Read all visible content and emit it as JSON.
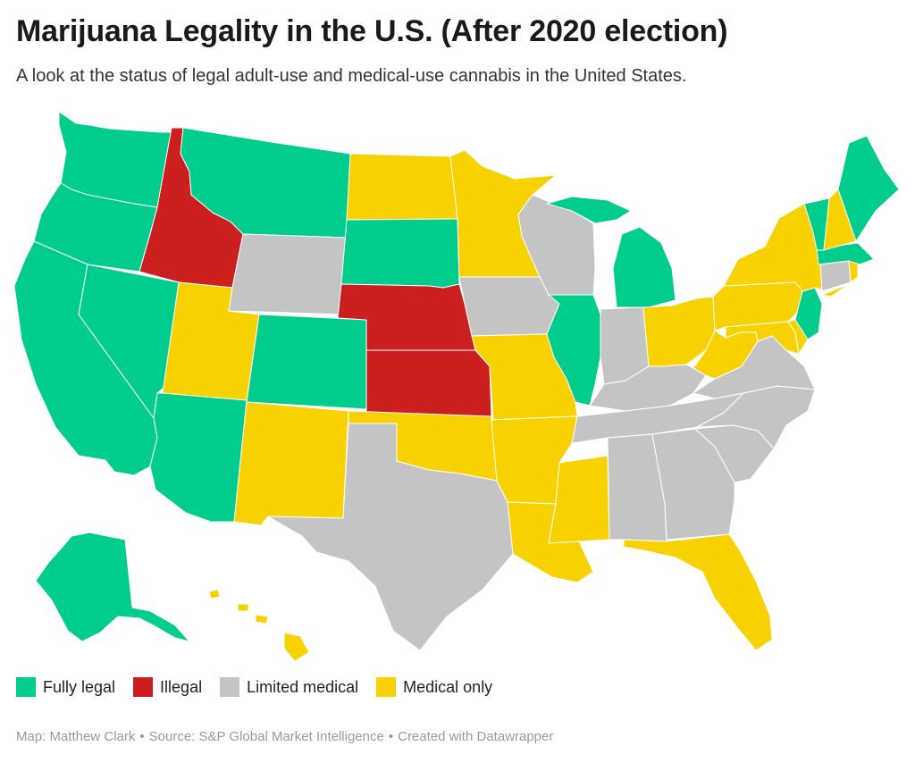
{
  "title": "Marijuana Legality in the U.S. (After 2020 election)",
  "subtitle": "A look at the status of legal adult-use and medical-use cannabis in the United States.",
  "colors": {
    "fully_legal": "#00cc8e",
    "illegal": "#cc1f1f",
    "limited_medical": "#c4c4c4",
    "medical_only": "#f7d100"
  },
  "legend": [
    {
      "key": "fully_legal",
      "label": "Fully legal"
    },
    {
      "key": "illegal",
      "label": "Illegal"
    },
    {
      "key": "limited_medical",
      "label": "Limited medical"
    },
    {
      "key": "medical_only",
      "label": "Medical only"
    }
  ],
  "state_status": {
    "WA": "fully_legal",
    "OR": "fully_legal",
    "CA": "fully_legal",
    "NV": "fully_legal",
    "AZ": "fully_legal",
    "MT": "fully_legal",
    "CO": "fully_legal",
    "SD": "fully_legal",
    "IL": "fully_legal",
    "MI": "fully_legal",
    "AK": "fully_legal",
    "ME": "fully_legal",
    "VT": "fully_legal",
    "MA": "fully_legal",
    "NJ": "fully_legal",
    "ID": "illegal",
    "NE": "illegal",
    "KS": "illegal",
    "WY": "limited_medical",
    "WI": "limited_medical",
    "IA": "limited_medical",
    "IN": "limited_medical",
    "TX": "limited_medical",
    "KY": "limited_medical",
    "TN": "limited_medical",
    "NC": "limited_medical",
    "SC": "limited_medical",
    "GA": "limited_medical",
    "AL": "limited_medical",
    "VA": "limited_medical",
    "CT": "limited_medical",
    "UT": "medical_only",
    "NM": "medical_only",
    "ND": "medical_only",
    "MN": "medical_only",
    "MO": "medical_only",
    "OK": "medical_only",
    "AR": "medical_only",
    "LA": "medical_only",
    "MS": "medical_only",
    "FL": "medical_only",
    "OH": "medical_only",
    "WV": "medical_only",
    "PA": "medical_only",
    "NY": "medical_only",
    "NH": "medical_only",
    "MD": "medical_only",
    "DE": "medical_only",
    "RI": "medical_only",
    "HI": "medical_only"
  },
  "footer": {
    "map_credit": "Map: Matthew Clark",
    "source": "Source: S&P Global Market Intelligence",
    "created": "Created with Datawrapper"
  }
}
